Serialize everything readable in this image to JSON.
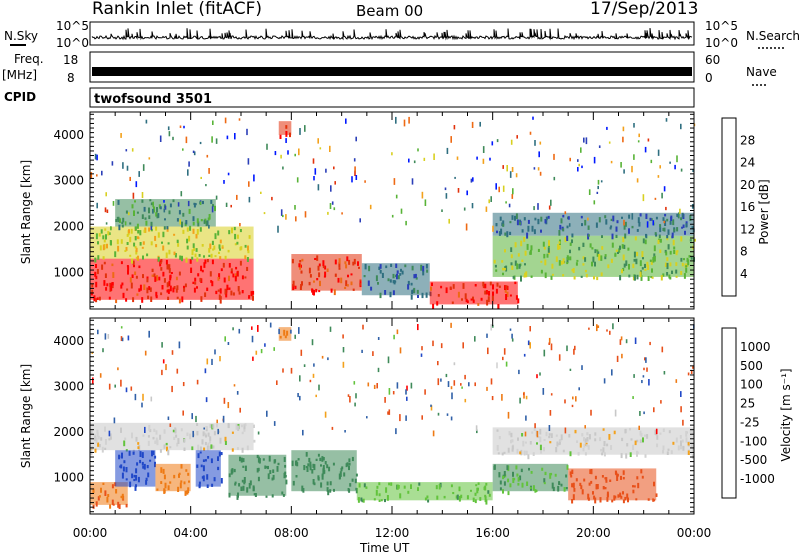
{
  "header": {
    "site": "Rankin Inlet (fitACF)",
    "beam": "Beam 00",
    "date": "17/Sep/2013"
  },
  "strips": {
    "nsky_label": "N.Sky",
    "nsky_ticks": [
      "10^5",
      "10^0"
    ],
    "nsearch_label": "N.Search",
    "nsearch_ticks": [
      "10^5",
      "10^0"
    ],
    "freq_label": "Freq.",
    "freq_unit": "[MHz]",
    "freq_ticks": [
      "18",
      "8"
    ],
    "nave_label": "Nave",
    "nave_ticks": [
      "60",
      "0"
    ],
    "cpid_label": "CPID",
    "cpid_value": "twofsound 3501"
  },
  "colors": {
    "power": [
      "#0018ff",
      "#2b3fb8",
      "#2f6f80",
      "#3f8a5a",
      "#58b337",
      "#d8d020",
      "#f3a11b",
      "#ee6a14",
      "#e2320c",
      "#ff0000"
    ],
    "velocity": [
      "#2048c8",
      "#3060a8",
      "#3f8a5a",
      "#62c33c",
      "#c8c8c8",
      "#d2d2d2",
      "#f3a11b",
      "#ee7a14",
      "#e8501a",
      "#ff0000"
    ]
  },
  "chart_data": [
    {
      "type": "heatmap",
      "title": "Power",
      "xlabel": "Time UT",
      "ylabel": "Slant Range [km]",
      "x_ticks": [
        "00:00",
        "04:00",
        "08:00",
        "12:00",
        "16:00",
        "20:00",
        "00:00"
      ],
      "y_ticks": [
        "1000",
        "2000",
        "3000",
        "4000"
      ],
      "ylim": [
        200,
        4500
      ],
      "colorbar": {
        "label": "Power [dB]",
        "ticks": [
          "4",
          "8",
          "12",
          "16",
          "20",
          "24",
          "28"
        ],
        "range": [
          0,
          30
        ]
      },
      "regions": [
        {
          "t0": 0.0,
          "t1": 6.5,
          "r0": 400,
          "r1": 1300,
          "value": 27
        },
        {
          "t0": 0.0,
          "t1": 6.5,
          "r0": 1300,
          "r1": 2000,
          "value": 16
        },
        {
          "t0": 1.0,
          "t1": 5.0,
          "r0": 2000,
          "r1": 2600,
          "value": 10
        },
        {
          "t0": 8.0,
          "t1": 10.8,
          "r0": 600,
          "r1": 1400,
          "value": 26
        },
        {
          "t0": 10.8,
          "t1": 13.5,
          "r0": 500,
          "r1": 1200,
          "value": 8
        },
        {
          "t0": 13.5,
          "t1": 17.0,
          "r0": 300,
          "r1": 800,
          "value": 27
        },
        {
          "t0": 16.0,
          "t1": 24.0,
          "r0": 900,
          "r1": 1800,
          "value": 14
        },
        {
          "t0": 16.0,
          "t1": 24.0,
          "r0": 1800,
          "r1": 2300,
          "value": 8
        },
        {
          "t0": 7.5,
          "t1": 8.0,
          "r0": 4000,
          "r1": 4300,
          "value": 24
        }
      ]
    },
    {
      "type": "heatmap",
      "title": "Velocity",
      "xlabel": "Time UT",
      "ylabel": "Slant Range [km]",
      "x_ticks": [
        "00:00",
        "04:00",
        "08:00",
        "12:00",
        "16:00",
        "20:00",
        "00:00"
      ],
      "y_ticks": [
        "1000",
        "2000",
        "3000",
        "4000"
      ],
      "ylim": [
        200,
        4500
      ],
      "colorbar": {
        "label": "Velocity [m s⁻¹]",
        "ticks": [
          "1000",
          "500",
          "100",
          "25",
          "-25",
          "-100",
          "-500",
          "-1000"
        ]
      },
      "regions": [
        {
          "t0": 0.0,
          "t1": 1.5,
          "r0": 400,
          "r1": 900,
          "value": -300
        },
        {
          "t0": 0.0,
          "t1": 6.5,
          "r0": 1600,
          "r1": 2200,
          "value": 0
        },
        {
          "t0": 1.0,
          "t1": 2.6,
          "r0": 800,
          "r1": 1600,
          "value": 800
        },
        {
          "t0": 2.6,
          "t1": 4.0,
          "r0": 700,
          "r1": 1300,
          "value": -150
        },
        {
          "t0": 4.2,
          "t1": 5.2,
          "r0": 800,
          "r1": 1600,
          "value": 800
        },
        {
          "t0": 5.5,
          "t1": 7.8,
          "r0": 600,
          "r1": 1500,
          "value": 200
        },
        {
          "t0": 8.0,
          "t1": 10.6,
          "r0": 700,
          "r1": 1600,
          "value": 200
        },
        {
          "t0": 10.6,
          "t1": 16.0,
          "r0": 500,
          "r1": 900,
          "value": 80
        },
        {
          "t0": 16.0,
          "t1": 24.0,
          "r0": 1500,
          "r1": 2100,
          "value": 0
        },
        {
          "t0": 16.0,
          "t1": 19.0,
          "r0": 700,
          "r1": 1300,
          "value": 100
        },
        {
          "t0": 19.0,
          "t1": 22.5,
          "r0": 500,
          "r1": 1200,
          "value": -400
        },
        {
          "t0": 7.5,
          "t1": 8.0,
          "r0": 4000,
          "r1": 4300,
          "value": -150
        }
      ]
    }
  ]
}
